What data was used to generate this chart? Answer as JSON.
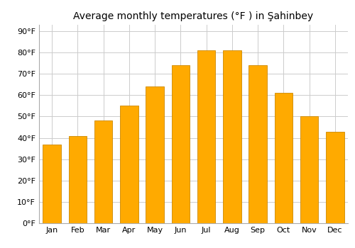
{
  "title": "Average monthly temperatures (°F ) in Şahinbey",
  "months": [
    "Jan",
    "Feb",
    "Mar",
    "Apr",
    "May",
    "Jun",
    "Jul",
    "Aug",
    "Sep",
    "Oct",
    "Nov",
    "Dec"
  ],
  "values": [
    37,
    41,
    48,
    55,
    64,
    74,
    81,
    81,
    74,
    61,
    50,
    43
  ],
  "bar_color": "#FFAA00",
  "bar_edge_color": "#CC8800",
  "ylim": [
    0,
    93
  ],
  "yticks": [
    0,
    10,
    20,
    30,
    40,
    50,
    60,
    70,
    80,
    90
  ],
  "ytick_labels": [
    "0°F",
    "10°F",
    "20°F",
    "30°F",
    "40°F",
    "50°F",
    "60°F",
    "70°F",
    "80°F",
    "90°F"
  ],
  "grid_color": "#cccccc",
  "background_color": "#ffffff",
  "title_fontsize": 10,
  "tick_fontsize": 8,
  "bar_width": 0.7
}
